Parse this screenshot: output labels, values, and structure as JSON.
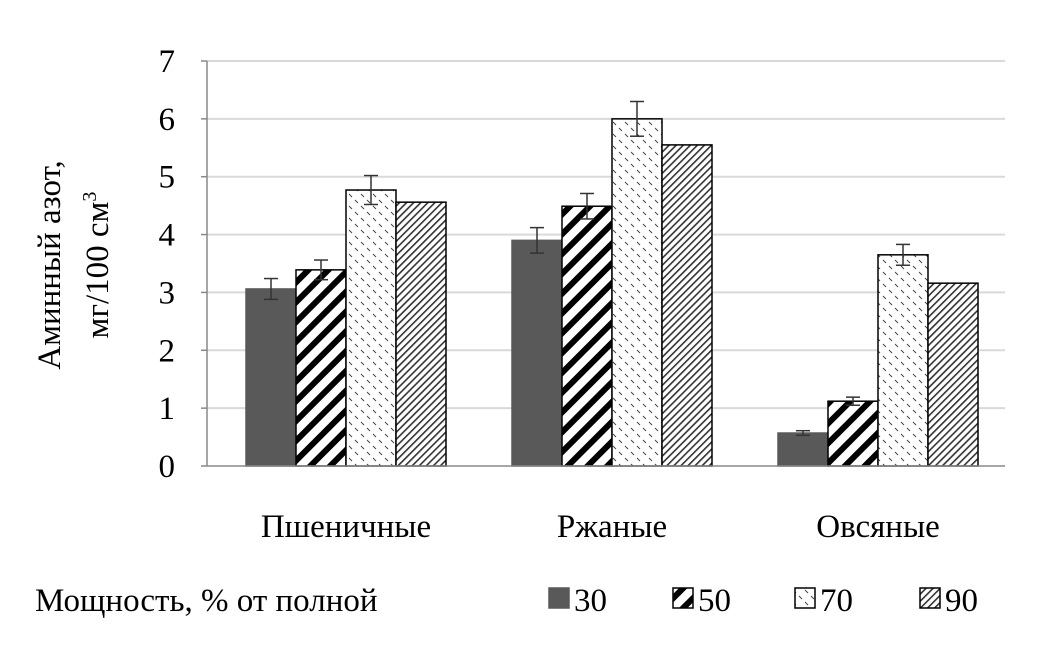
{
  "chart_data": {
    "type": "bar",
    "title": "",
    "ylabel_line1": "Аминный азот,",
    "ylabel_line2": "мг/100 см",
    "ylabel_sup": "3",
    "xlabel": "",
    "ylim": [
      0,
      7
    ],
    "yticks": [
      "0",
      "1",
      "2",
      "3",
      "4",
      "5",
      "6",
      "7"
    ],
    "grid": true,
    "categories": [
      "Пшеничные",
      "Ржаные",
      "Овсяные"
    ],
    "legend_title": "Мощность, % от полной",
    "legend_position": "bottom",
    "series": [
      {
        "name": "30",
        "values": [
          3.06,
          3.9,
          0.57
        ],
        "errors": [
          0.18,
          0.22,
          0.04
        ],
        "pattern": "solid",
        "color": "#595959"
      },
      {
        "name": "50",
        "values": [
          3.39,
          4.49,
          1.12
        ],
        "errors": [
          0.17,
          0.22,
          0.07
        ],
        "pattern": "wide-diagonal",
        "color": "#000000"
      },
      {
        "name": "70",
        "values": [
          4.77,
          6.0,
          3.65
        ],
        "errors": [
          0.25,
          0.3,
          0.18
        ],
        "pattern": "dashed-dots",
        "color": "#000000"
      },
      {
        "name": "90",
        "values": [
          4.56,
          5.55,
          3.16
        ],
        "errors": null,
        "pattern": "dense-diagonal",
        "color": "#000000"
      }
    ]
  }
}
